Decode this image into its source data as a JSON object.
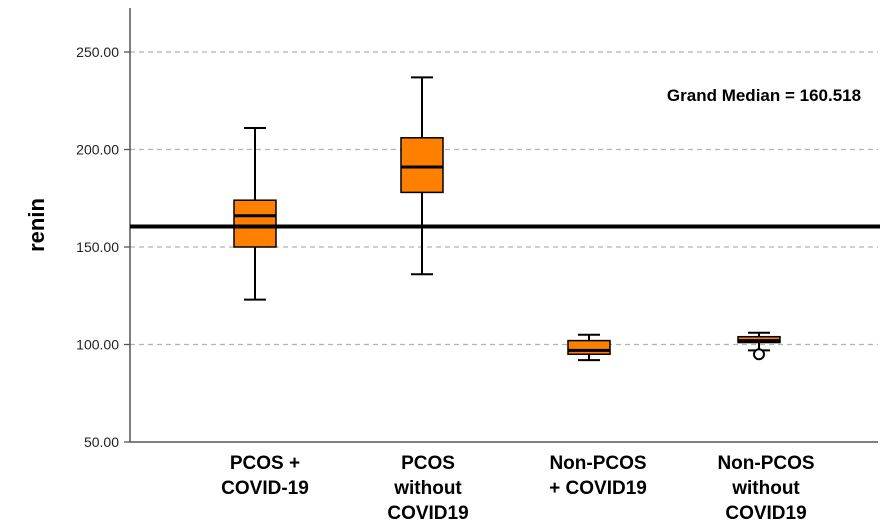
{
  "chart_data": {
    "type": "boxplot",
    "ylabel": "renin",
    "ylim": [
      50,
      270
    ],
    "yticks": [
      50,
      100,
      150,
      200,
      250
    ],
    "ytick_labels": [
      "50.00",
      "100.00",
      "150.00",
      "200.00",
      "250.00"
    ],
    "grid": "horizontal dashed",
    "categories": [
      [
        "PCOS +",
        "COVID-19"
      ],
      [
        "PCOS",
        "without",
        "COVID19"
      ],
      [
        "Non-PCOS",
        "+ COVID19"
      ],
      [
        "Non-PCOS",
        "without",
        "COVID19"
      ]
    ],
    "boxes": [
      {
        "min": 123,
        "q1": 150,
        "median": 166,
        "q3": 174,
        "max": 211,
        "outliers": []
      },
      {
        "min": 136,
        "q1": 178,
        "median": 191,
        "q3": 206,
        "max": 237,
        "outliers": []
      },
      {
        "min": 92,
        "q1": 95,
        "median": 97,
        "q3": 102,
        "max": 105,
        "outliers": []
      },
      {
        "min": 97,
        "q1": 101,
        "median": 102,
        "q3": 104,
        "max": 106,
        "outliers": [
          95
        ]
      }
    ],
    "reference_line": {
      "value": 160.518,
      "label": "Grand Median = 160.518"
    },
    "colors": {
      "box_fill": "#ff8000",
      "box_stroke": "#000000",
      "grid": "#b3b3b3",
      "reference": "#000000"
    }
  }
}
